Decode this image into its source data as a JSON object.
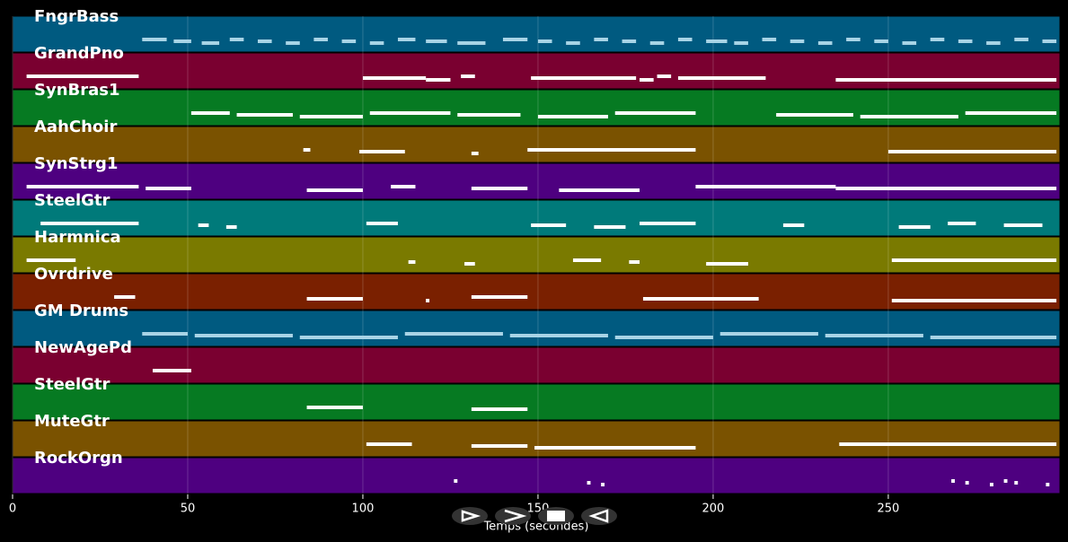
{
  "chart_data": {
    "type": "pianoroll",
    "x_label": "Temps (secondes)",
    "xlim": [
      0,
      299
    ],
    "xticks": [
      0,
      50,
      100,
      150,
      200,
      250
    ],
    "grid": true,
    "series": [
      {
        "name": "FngrBass",
        "color": "#005a80",
        "note_color": "#a8d4e6",
        "notes": [
          [
            37,
            44
          ],
          [
            46,
            51
          ],
          [
            54,
            59
          ],
          [
            62,
            66
          ],
          [
            70,
            74
          ],
          [
            78,
            82
          ],
          [
            86,
            90
          ],
          [
            94,
            98
          ],
          [
            102,
            106
          ],
          [
            110,
            115
          ],
          [
            118,
            124
          ],
          [
            127,
            135
          ],
          [
            140,
            147
          ],
          [
            150,
            154
          ],
          [
            158,
            162
          ],
          [
            166,
            170
          ],
          [
            174,
            178
          ],
          [
            182,
            186
          ],
          [
            190,
            194
          ],
          [
            198,
            204
          ],
          [
            206,
            210
          ],
          [
            214,
            218
          ],
          [
            222,
            226
          ],
          [
            230,
            234
          ],
          [
            238,
            242
          ],
          [
            246,
            250
          ],
          [
            254,
            258
          ],
          [
            262,
            266
          ],
          [
            270,
            274
          ],
          [
            278,
            282
          ],
          [
            286,
            290
          ],
          [
            294,
            298
          ]
        ]
      },
      {
        "name": "GrandPno",
        "color": "#7a0030",
        "note_color": "#ffffff",
        "notes": [
          [
            4,
            36
          ],
          [
            100,
            118
          ],
          [
            118,
            125
          ],
          [
            128,
            132
          ],
          [
            148,
            178
          ],
          [
            179,
            183
          ],
          [
            184,
            188
          ],
          [
            190,
            215
          ],
          [
            235,
            298
          ]
        ]
      },
      {
        "name": "SynBras1",
        "color": "#067a22",
        "note_color": "#ffffff",
        "notes": [
          [
            51,
            62
          ],
          [
            64,
            80
          ],
          [
            82,
            100
          ],
          [
            102,
            125
          ],
          [
            127,
            145
          ],
          [
            150,
            170
          ],
          [
            172,
            195
          ],
          [
            218,
            240
          ],
          [
            242,
            270
          ],
          [
            272,
            298
          ]
        ]
      },
      {
        "name": "AahChoir",
        "color": "#7a5200",
        "note_color": "#ffffff",
        "notes": [
          [
            83,
            85
          ],
          [
            99,
            112
          ],
          [
            131,
            133
          ],
          [
            147,
            195
          ],
          [
            250,
            298
          ]
        ]
      },
      {
        "name": "SynStrg1",
        "color": "#4e0080",
        "note_color": "#ffffff",
        "notes": [
          [
            4,
            36
          ],
          [
            38,
            51
          ],
          [
            84,
            100
          ],
          [
            108,
            115
          ],
          [
            131,
            147
          ],
          [
            156,
            179
          ],
          [
            195,
            235
          ],
          [
            235,
            298
          ]
        ]
      },
      {
        "name": "SteelGtr",
        "color": "#007a7a",
        "note_color": "#ffffff",
        "notes": [
          [
            8,
            36
          ],
          [
            53,
            56
          ],
          [
            61,
            64
          ],
          [
            101,
            110
          ],
          [
            148,
            158
          ],
          [
            166,
            175
          ],
          [
            179,
            195
          ],
          [
            220,
            226
          ],
          [
            253,
            262
          ],
          [
            267,
            275
          ],
          [
            283,
            294
          ]
        ]
      },
      {
        "name": "Harmnica",
        "color": "#7a7a00",
        "note_color": "#ffffff",
        "notes": [
          [
            4,
            18
          ],
          [
            113,
            115
          ],
          [
            129,
            132
          ],
          [
            160,
            168
          ],
          [
            176,
            179
          ],
          [
            198,
            210
          ],
          [
            251,
            298
          ]
        ]
      },
      {
        "name": "Ovrdrive",
        "color": "#7a2000",
        "note_color": "#ffffff",
        "notes": [
          [
            29,
            35
          ],
          [
            84,
            100
          ],
          [
            118,
            119
          ],
          [
            131,
            147
          ],
          [
            180,
            213
          ],
          [
            251,
            298
          ]
        ]
      },
      {
        "name": "GM Drums",
        "color": "#005a80",
        "note_color": "#a8d4e6",
        "notes": [
          [
            37,
            50
          ],
          [
            52,
            80
          ],
          [
            82,
            110
          ],
          [
            112,
            140
          ],
          [
            142,
            170
          ],
          [
            172,
            200
          ],
          [
            202,
            230
          ],
          [
            232,
            260
          ],
          [
            262,
            298
          ]
        ]
      },
      {
        "name": "NewAgePd",
        "color": "#7a0030",
        "note_color": "#ffffff",
        "notes": [
          [
            40,
            51
          ]
        ]
      },
      {
        "name": "SteelGtr",
        "color": "#067a22",
        "note_color": "#ffffff",
        "notes": [
          [
            84,
            100
          ],
          [
            131,
            147
          ]
        ]
      },
      {
        "name": "MuteGtr",
        "color": "#7a5200",
        "note_color": "#ffffff",
        "notes": [
          [
            101,
            114
          ],
          [
            131,
            147
          ],
          [
            149,
            195
          ],
          [
            236,
            298
          ]
        ]
      },
      {
        "name": "RockOrgn",
        "color": "#4e0080",
        "note_color": "#ffffff",
        "notes": [
          [
            126,
            127
          ],
          [
            164,
            165
          ],
          [
            168,
            169
          ],
          [
            268,
            269
          ],
          [
            272,
            273
          ],
          [
            279,
            280
          ],
          [
            283,
            284
          ],
          [
            286,
            287
          ],
          [
            295,
            296
          ]
        ]
      }
    ]
  }
}
